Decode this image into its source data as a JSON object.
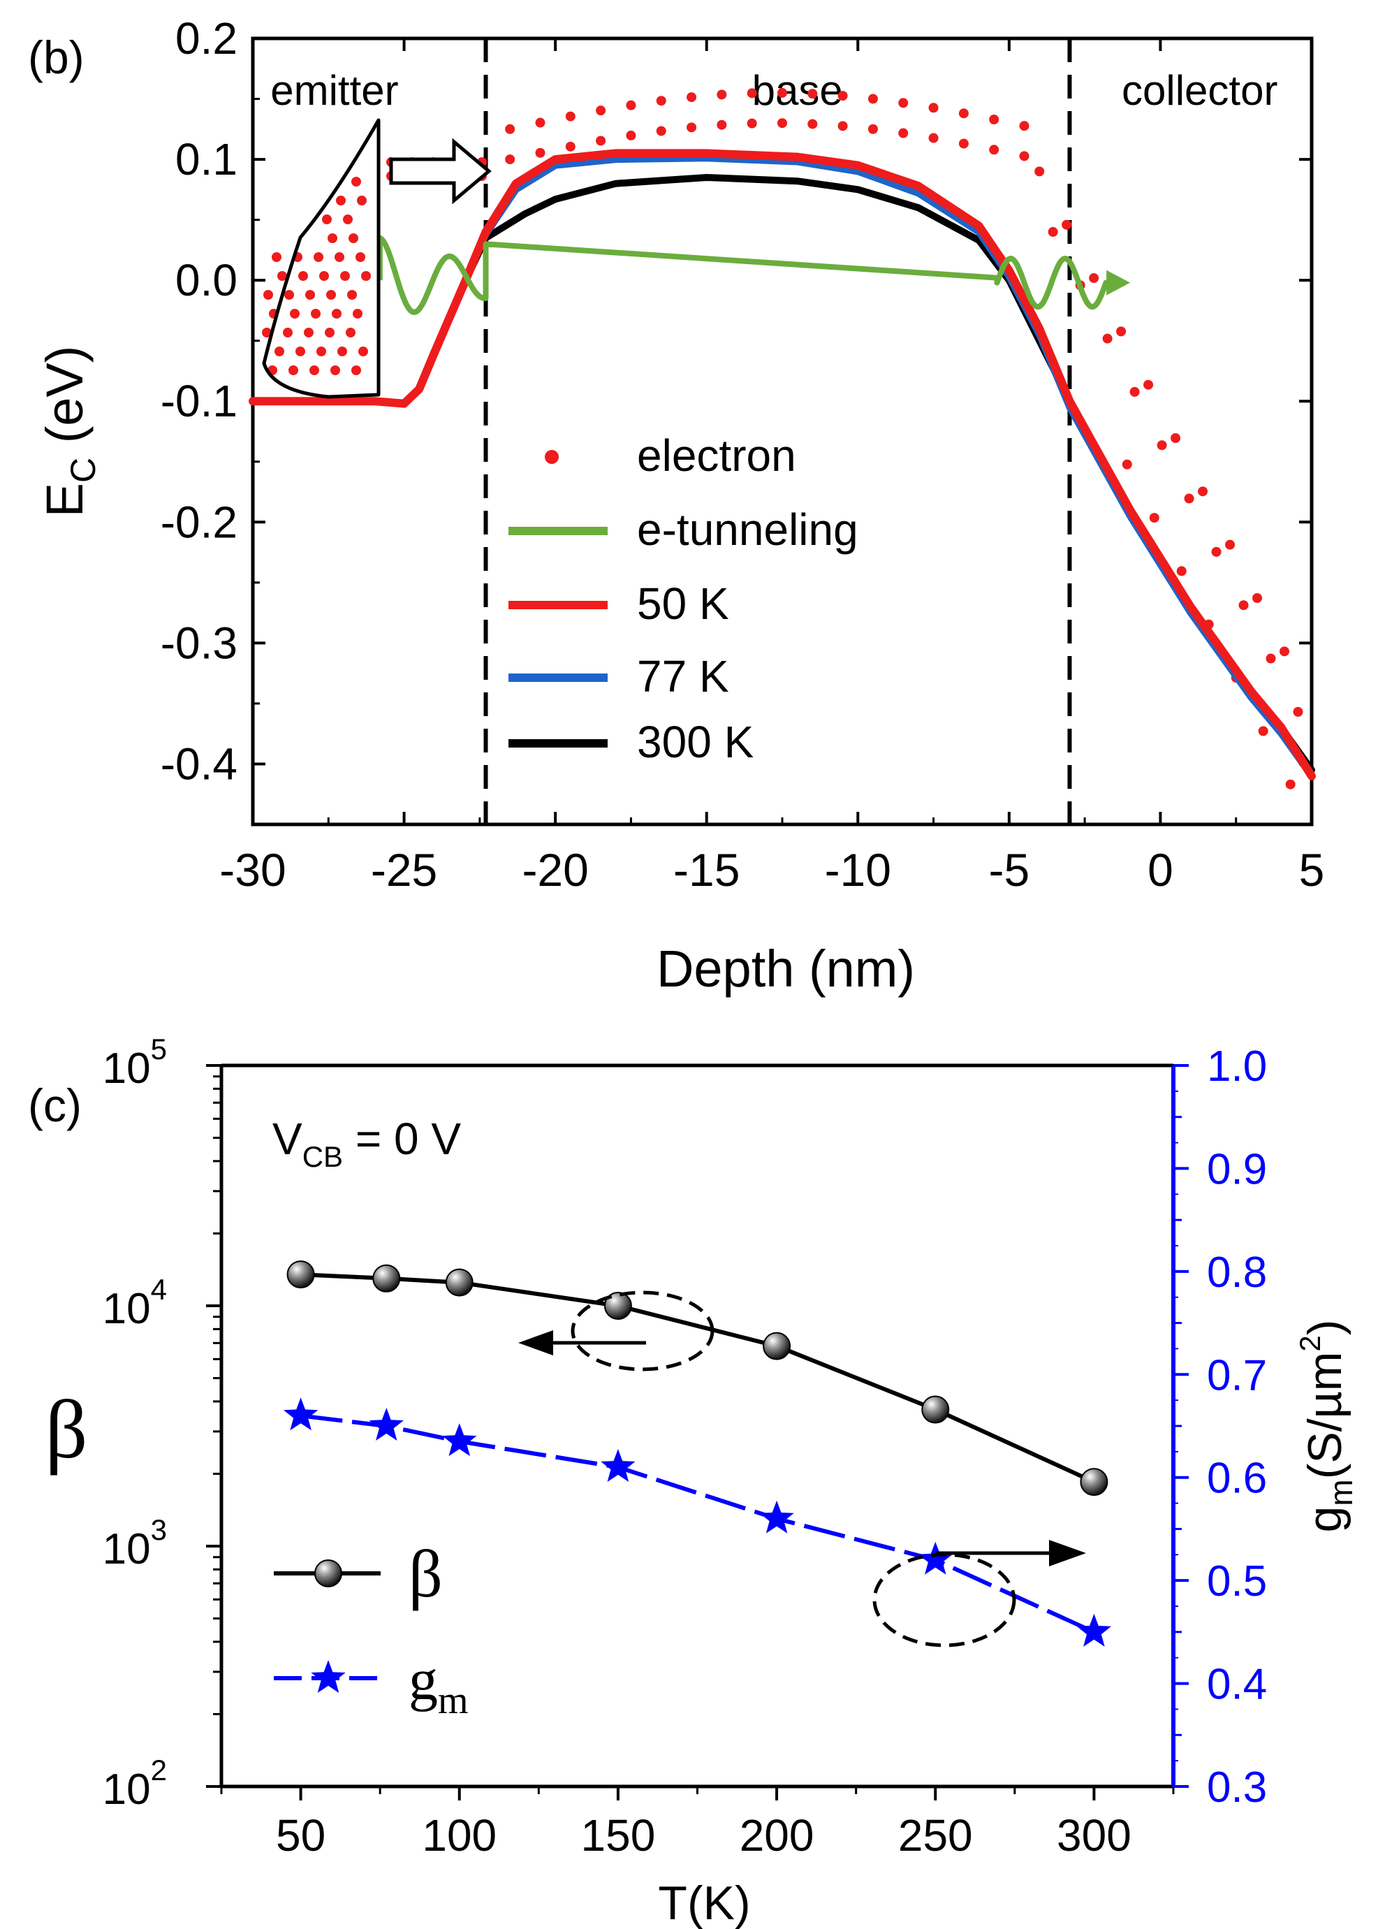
{
  "chart_data": [
    {
      "panel": "(b)",
      "type": "line",
      "xlabel": "Depth (nm)",
      "ylabel": {
        "main": "E",
        "sub": "C",
        "unit": " (eV)"
      },
      "xlim": [
        -30,
        5
      ],
      "ylim": [
        -0.45,
        0.2
      ],
      "xticks": [
        -30,
        -25,
        -20,
        -15,
        -10,
        -5,
        0,
        5
      ],
      "xtick_labels": [
        "-30",
        "-25",
        "-20",
        "-15",
        "-10",
        "-5",
        "0",
        "5"
      ],
      "yticks": [
        -0.4,
        -0.3,
        -0.2,
        -0.1,
        0.0,
        0.1,
        0.2
      ],
      "ytick_labels": [
        "-0.4",
        "-0.3",
        "-0.2",
        "-0.1",
        "0.0",
        "0.1",
        "0.2"
      ],
      "regions": [
        {
          "label": "emitter",
          "x": -27.3
        },
        {
          "label": "base",
          "x": -12.0
        },
        {
          "label": "collector",
          "x": 1.3
        }
      ],
      "boundaries": [
        -22.3,
        -3.0
      ],
      "legend": [
        {
          "label": "electron",
          "color": "#ee1c1c",
          "kind": "dot"
        },
        {
          "label": "e-tunneling",
          "color": "#6aad3d",
          "kind": "line"
        },
        {
          "label": "50 K",
          "color": "#ee1c1c",
          "kind": "line"
        },
        {
          "label": "77 K",
          "color": "#1f64c8",
          "kind": "line"
        },
        {
          "label": "300 K",
          "color": "#000000",
          "kind": "line"
        }
      ],
      "series": [
        {
          "name": "300 K",
          "color": "#000000",
          "x": [
            -30,
            -26,
            -25,
            -24.5,
            -24,
            -23,
            -22.3,
            -21,
            -20,
            -18,
            -15,
            -12,
            -10,
            -8,
            -6,
            -5,
            -4,
            -3,
            -2,
            -1,
            0,
            1,
            2,
            3,
            4,
            5
          ],
          "y": [
            -0.1,
            -0.1,
            -0.102,
            -0.09,
            -0.06,
            -0.002,
            0.035,
            0.055,
            0.067,
            0.08,
            0.085,
            0.082,
            0.075,
            0.06,
            0.033,
            0.0,
            -0.05,
            -0.1,
            -0.145,
            -0.19,
            -0.23,
            -0.27,
            -0.305,
            -0.34,
            -0.37,
            -0.405
          ]
        },
        {
          "name": "77 K",
          "color": "#1f64c8",
          "x": [
            -30,
            -26,
            -25,
            -24.5,
            -24,
            -23,
            -22.3,
            -21.3,
            -20,
            -18,
            -15,
            -12,
            -10,
            -8,
            -6,
            -5,
            -4,
            -3,
            -2,
            -1,
            0,
            1,
            2,
            3,
            4,
            5
          ],
          "y": [
            -0.1,
            -0.1,
            -0.102,
            -0.09,
            -0.06,
            -0.002,
            0.038,
            0.075,
            0.095,
            0.1,
            0.101,
            0.098,
            0.09,
            0.072,
            0.04,
            0.003,
            -0.045,
            -0.105,
            -0.15,
            -0.195,
            -0.235,
            -0.275,
            -0.31,
            -0.345,
            -0.375,
            -0.41
          ]
        },
        {
          "name": "50 K",
          "color": "#ee1c1c",
          "x": [
            -30,
            -26,
            -25,
            -24.5,
            -24,
            -23,
            -22.3,
            -21.3,
            -20,
            -18,
            -15,
            -12,
            -10,
            -8,
            -6,
            -5,
            -4,
            -3,
            -2,
            -1,
            0,
            1,
            2,
            3,
            4,
            5
          ],
          "y": [
            -0.1,
            -0.1,
            -0.102,
            -0.09,
            -0.06,
            -0.002,
            0.04,
            0.08,
            0.1,
            0.105,
            0.105,
            0.102,
            0.095,
            0.078,
            0.045,
            0.008,
            -0.04,
            -0.1,
            -0.145,
            -0.19,
            -0.23,
            -0.27,
            -0.305,
            -0.34,
            -0.37,
            -0.41
          ]
        },
        {
          "name": "e-tunneling",
          "color": "#6aad3d",
          "kind": "wave",
          "start": [
            -25.8,
            0.0
          ],
          "end": [
            -5.0,
            0.0
          ],
          "flat": [
            [
              -22.3,
              0.03
            ],
            [
              -5.4,
              0.002
            ]
          ],
          "arrow_to": [
            -1.0,
            -0.002
          ]
        },
        {
          "name": "electron",
          "color": "#ee1c1c",
          "kind": "dots"
        }
      ]
    },
    {
      "panel": "(c)",
      "type": "line",
      "xlabel": "T(K)",
      "ylabel_left": "β",
      "ylabel_right": {
        "main": "g",
        "sub": "m",
        "unit": "(S/µm",
        "sup": "2",
        "close": ")"
      },
      "annotation": {
        "main": "V",
        "sub": "CB",
        "rest": " = 0 V"
      },
      "xlim": [
        25,
        325
      ],
      "xticks": [
        50,
        100,
        150,
        200,
        250,
        300
      ],
      "xtick_labels": [
        "50",
        "100",
        "150",
        "200",
        "250",
        "300"
      ],
      "ylim_left_log": [
        100,
        100000
      ],
      "yticks_left": [
        {
          "base": "10",
          "exp": "2"
        },
        {
          "base": "10",
          "exp": "3"
        },
        {
          "base": "10",
          "exp": "4"
        },
        {
          "base": "10",
          "exp": "5"
        }
      ],
      "ylim_right": [
        0.3,
        1.0
      ],
      "yticks_right": [
        0.3,
        0.4,
        0.5,
        0.6,
        0.7,
        0.8,
        0.9,
        1.0
      ],
      "ytick_labels_right": [
        "0.3",
        "0.4",
        "0.5",
        "0.6",
        "0.7",
        "0.8",
        "0.9",
        "1.0"
      ],
      "series": [
        {
          "name": "β",
          "axis": "left",
          "color": "#000000",
          "marker": "sphere",
          "x": [
            50,
            77,
            100,
            150,
            200,
            250,
            300
          ],
          "y": [
            13500,
            13000,
            12500,
            10000,
            6800,
            3700,
            1850
          ]
        },
        {
          "name": "g",
          "sub": "m",
          "axis": "right",
          "color": "#0000ff",
          "marker": "star",
          "x": [
            50,
            77,
            100,
            150,
            200,
            250,
            300
          ],
          "y": [
            0.66,
            0.65,
            0.635,
            0.61,
            0.56,
            0.52,
            0.45
          ]
        }
      ],
      "legend": [
        {
          "label": "β",
          "color": "#000000"
        },
        {
          "label": "g",
          "sub": "m",
          "color": "#0000ff"
        }
      ]
    }
  ],
  "panel_labels": [
    "(b)",
    "(c)"
  ]
}
